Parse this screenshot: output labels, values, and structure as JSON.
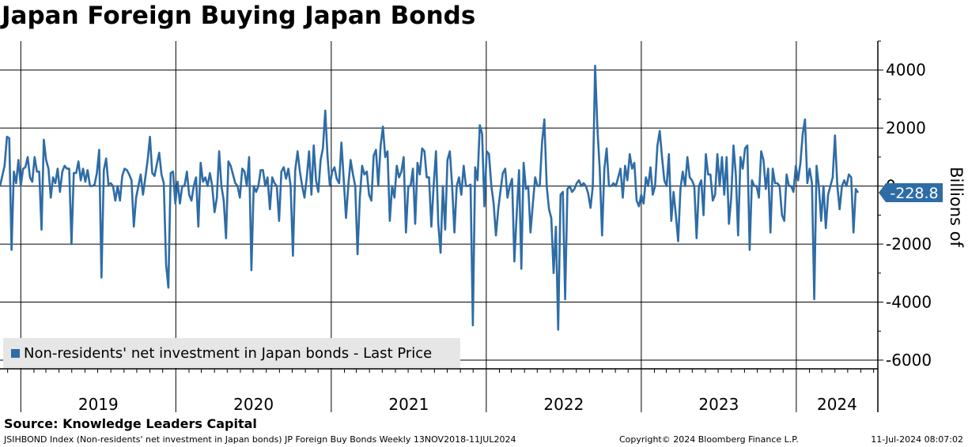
{
  "title": "Japan Foreign Buying Japan Bonds",
  "source": "Source: Knowledge Leaders Capital",
  "footer": {
    "description": "JSIHBOND Index (Non-residents' net investment in Japan bonds) JP Foreign Buy Bonds  Weekly 13NOV2018-11JUL2024",
    "copyright": "Copyright© 2024 Bloomberg Finance L.P.",
    "timestamp": "11-Jul-2024 08:07:02"
  },
  "legend": {
    "label": "Non-residents' net investment in Japan bonds - Last Price"
  },
  "y_unit": "Billions of",
  "last_value_label": "-228.8",
  "colors": {
    "line": "#2e6ca6",
    "last_label_bg": "#2e6ca6",
    "legend_bg": "#e6e6e6"
  },
  "chart_data": {
    "type": "line",
    "title": "Japan Foreign Buying Japan Bonds",
    "ylabel": "Billions of",
    "ylim": [
      -6300,
      5000
    ],
    "y_ticks": [
      4000,
      2000,
      0,
      -2000,
      -4000,
      -6000
    ],
    "y_tick_labels": [
      "4000",
      "2000",
      "0",
      "-2000",
      "-4000",
      "-6000"
    ],
    "x_start": "2018-11-13",
    "x_end": "2024-07-11",
    "year_boundaries": [
      "2019-01-01",
      "2020-01-01",
      "2021-01-01",
      "2022-01-01",
      "2023-01-01",
      "2024-01-01"
    ],
    "year_labels": [
      "2019",
      "2020",
      "2021",
      "2022",
      "2023",
      "2024"
    ],
    "frequency": "weekly",
    "grid": true,
    "legend_position": "bottom-left",
    "last_value": -228.8,
    "series": [
      {
        "name": "Non-residents' net investment in Japan bonds - Last Price",
        "values": [
          0,
          350,
          700,
          1700,
          1650,
          -2200,
          500,
          100,
          900,
          0,
          600,
          650,
          1000,
          300,
          150,
          1000,
          500,
          500,
          -1500,
          1600,
          900,
          600,
          -400,
          300,
          100,
          600,
          -200,
          500,
          700,
          600,
          600,
          -2000,
          450,
          450,
          850,
          200,
          600,
          150,
          550,
          0,
          0,
          50,
          450,
          1250,
          -3150,
          550,
          950,
          50,
          100,
          0,
          -500,
          0,
          -500,
          350,
          600,
          550,
          400,
          200,
          -1400,
          -400,
          0,
          400,
          -300,
          300,
          900,
          1700,
          450,
          350,
          750,
          1150,
          400,
          100,
          -2700,
          -3500,
          450,
          500,
          -600,
          150,
          -600,
          0,
          0,
          500,
          -300,
          -500,
          0,
          300,
          -1400,
          800,
          150,
          300,
          0,
          450,
          0,
          -900,
          -400,
          1200,
          0,
          -500,
          -1800,
          850,
          700,
          400,
          100,
          0,
          -400,
          600,
          500,
          0,
          1000,
          -2900,
          0,
          -200,
          0,
          550,
          550,
          0,
          300,
          -800,
          300,
          100,
          0,
          -1200,
          500,
          650,
          250,
          600,
          0,
          -2400,
          550,
          1200,
          500,
          0,
          -400,
          300,
          1200,
          -300,
          1400,
          200,
          -200,
          900,
          1300,
          2600,
          1000,
          0,
          500,
          650,
          250,
          100,
          1500,
          250,
          -1100,
          0,
          900,
          400,
          0,
          -2350,
          -400,
          700,
          400,
          500,
          -300,
          -500,
          1050,
          1250,
          0,
          1400,
          2050,
          1000,
          1200,
          -1200,
          0,
          -400,
          700,
          300,
          500,
          1000,
          -1600,
          0,
          0,
          600,
          -1300,
          800,
          400,
          1300,
          1200,
          300,
          300,
          -1400,
          0,
          1200,
          -1300,
          -2300,
          0,
          -1500,
          900,
          1200,
          0,
          -1600,
          0,
          300,
          -300,
          700,
          0,
          0,
          50,
          -4800,
          650,
          200,
          2100,
          1800,
          -700,
          1200,
          1100,
          0,
          -600,
          -1700,
          -800,
          -150,
          450,
          600,
          -400,
          0,
          250,
          -2600,
          -1000,
          550,
          -2850,
          800,
          -100,
          0,
          -1600,
          -600,
          300,
          0,
          0,
          1500,
          2300,
          0,
          -800,
          -1100,
          -3000,
          -1400,
          -4950,
          -300,
          -200,
          -3900,
          -100,
          0,
          -200,
          -100,
          100,
          200,
          0,
          100,
          0,
          -250,
          -750,
          0,
          4150,
          2000,
          600,
          -1700,
          600,
          1300,
          0,
          0,
          100,
          0,
          300,
          600,
          -400,
          700,
          200,
          1100,
          600,
          800,
          -500,
          -700,
          -300,
          -600,
          300,
          0,
          650,
          -300,
          0,
          1400,
          1900,
          1000,
          200,
          0,
          1100,
          -1200,
          -200,
          -1000,
          -1900,
          -100,
          500,
          0,
          1000,
          300,
          200,
          0,
          -1800,
          0,
          200,
          -1000,
          1100,
          400,
          400,
          -500,
          -300,
          1100,
          0,
          1000,
          -300,
          1000,
          -1300,
          -400,
          1400,
          400,
          -1700,
          1000,
          600,
          1300,
          1400,
          -2200,
          200,
          0,
          0,
          -400,
          1200,
          900,
          -100,
          600,
          -1600,
          600,
          100,
          100,
          0,
          -1000,
          -1200,
          400,
          0,
          0,
          -200,
          700,
          200,
          800,
          1800,
          2300,
          100,
          600,
          100,
          -3900,
          700,
          0,
          -1200,
          0,
          -1450,
          -300,
          0,
          300,
          1750,
          0,
          -800,
          0,
          200,
          0,
          400,
          300,
          -1600,
          -100,
          -228.8
        ]
      }
    ]
  }
}
